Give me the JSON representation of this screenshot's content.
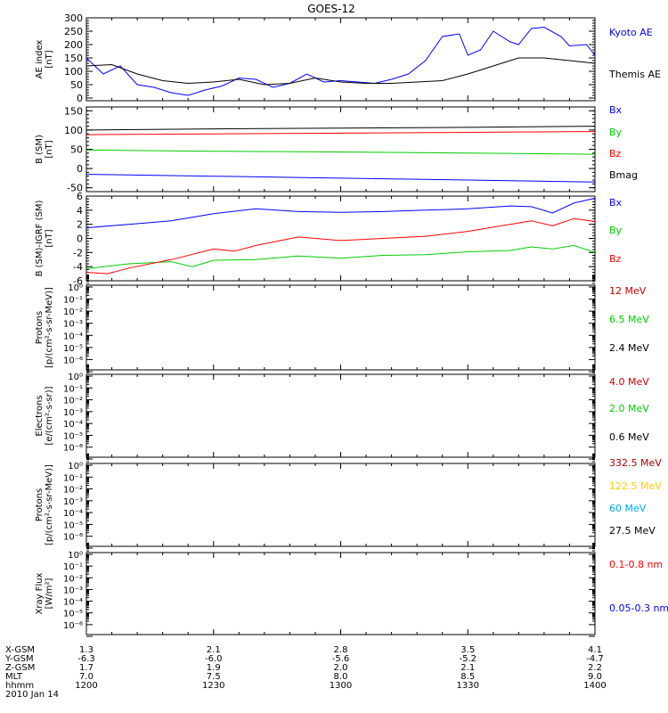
{
  "title": "GOES-12",
  "chart_data": [
    {
      "type": "line",
      "ylabel": "AE index\n[nT]",
      "ylim": [
        -10,
        300
      ],
      "yticks": [
        0,
        50,
        100,
        150,
        200,
        250,
        300
      ],
      "scale": "linear",
      "x": "time 12:00 to 14:00 UT",
      "series": [
        {
          "name": "Kyoto AE",
          "color": "#0000ff",
          "t": [
            0,
            4,
            8,
            12,
            16,
            20,
            24,
            28,
            32,
            36,
            40,
            44,
            48,
            52,
            56,
            60,
            64,
            68,
            72,
            76,
            80,
            84,
            88,
            90,
            93,
            96,
            100,
            102,
            105,
            108,
            112,
            114,
            118,
            120
          ],
          "values": [
            150,
            90,
            120,
            50,
            40,
            20,
            10,
            30,
            45,
            75,
            70,
            40,
            55,
            90,
            60,
            65,
            60,
            55,
            70,
            90,
            140,
            230,
            240,
            160,
            180,
            250,
            210,
            200,
            260,
            265,
            230,
            195,
            200,
            160
          ]
        },
        {
          "name": "Themis AE",
          "color": "#000000",
          "t": [
            0,
            6,
            12,
            18,
            24,
            30,
            36,
            42,
            48,
            54,
            60,
            66,
            72,
            78,
            84,
            90,
            96,
            102,
            108,
            114,
            120
          ],
          "values": [
            120,
            125,
            90,
            65,
            55,
            60,
            70,
            50,
            55,
            75,
            60,
            55,
            55,
            60,
            65,
            90,
            120,
            150,
            150,
            140,
            130
          ]
        }
      ]
    },
    {
      "type": "line",
      "ylabel": "B (SM)\n[nT]",
      "ylim": [
        -60,
        160
      ],
      "yticks": [
        -50,
        0,
        50,
        100,
        150
      ],
      "scale": "linear",
      "series": [
        {
          "name": "Bx",
          "color": "#0000ff",
          "t": [
            0,
            30,
            60,
            90,
            120
          ],
          "values": [
            -15,
            -20,
            -25,
            -30,
            -35
          ]
        },
        {
          "name": "By",
          "color": "#00cc00",
          "t": [
            0,
            30,
            60,
            90,
            120
          ],
          "values": [
            48,
            45,
            43,
            40,
            37
          ]
        },
        {
          "name": "Bz",
          "color": "#ff0000",
          "t": [
            0,
            30,
            60,
            90,
            120
          ],
          "values": [
            88,
            90,
            92,
            94,
            96
          ]
        },
        {
          "name": "Bmag",
          "color": "#000000",
          "t": [
            0,
            30,
            60,
            90,
            120
          ],
          "values": [
            100,
            103,
            105,
            107,
            110
          ]
        }
      ]
    },
    {
      "type": "line",
      "ylabel": "B (SM)-IGRF (SM)\n[nT]",
      "ylim": [
        -6,
        6
      ],
      "yticks": [
        -6,
        -4,
        -2,
        0,
        2,
        4,
        6
      ],
      "scale": "linear",
      "series": [
        {
          "name": "Bx",
          "color": "#0000ff",
          "t": [
            0,
            10,
            20,
            30,
            40,
            50,
            60,
            70,
            80,
            90,
            100,
            105,
            110,
            115,
            120
          ],
          "values": [
            1.5,
            2.0,
            2.5,
            3.5,
            4.2,
            3.8,
            3.7,
            3.8,
            4.0,
            4.2,
            4.6,
            4.5,
            3.6,
            5.0,
            5.7
          ]
        },
        {
          "name": "By",
          "color": "#00cc00",
          "t": [
            0,
            10,
            20,
            25,
            30,
            40,
            50,
            60,
            70,
            80,
            90,
            100,
            105,
            110,
            115,
            120
          ],
          "values": [
            -4.3,
            -3.6,
            -3.3,
            -4.0,
            -3.1,
            -3.0,
            -2.5,
            -2.8,
            -2.4,
            -2.3,
            -1.9,
            -1.7,
            -1.2,
            -1.5,
            -1.0,
            -2.0
          ]
        },
        {
          "name": "Bz",
          "color": "#ff0000",
          "t": [
            0,
            5,
            10,
            20,
            30,
            35,
            40,
            50,
            60,
            70,
            80,
            90,
            100,
            105,
            110,
            115,
            120
          ],
          "values": [
            -4.8,
            -5.0,
            -4.2,
            -3.0,
            -1.5,
            -1.8,
            -1.0,
            0.2,
            -0.3,
            0.0,
            0.3,
            1.0,
            2.0,
            2.5,
            1.8,
            2.8,
            2.4
          ]
        }
      ]
    },
    {
      "type": "line",
      "ylabel": "Protons\n[p/(cm²-s-sr-MeV)]",
      "ylim": [
        -7,
        0
      ],
      "scale": "log",
      "ticklabels": [
        "10⁰",
        "10⁻¹",
        "10⁻²",
        "10⁻³",
        "10⁻⁴",
        "10⁻⁵",
        "10⁻⁶"
      ],
      "series": [
        {
          "name": "12 MeV",
          "color": "#cc0000",
          "values": []
        },
        {
          "name": "6.5 MeV",
          "color": "#00cc00",
          "values": []
        },
        {
          "name": "2.4 MeV",
          "color": "#000000",
          "values": []
        }
      ]
    },
    {
      "type": "line",
      "ylabel": "Electrons\n[e/(cm²-s-sr)]",
      "ylim": [
        -7,
        0
      ],
      "scale": "log",
      "ticklabels": [
        "10⁰",
        "10⁻¹",
        "10⁻²",
        "10⁻³",
        "10⁻⁴",
        "10⁻⁵",
        "10⁻⁶"
      ],
      "series": [
        {
          "name": "4.0 MeV",
          "color": "#cc0000",
          "values": []
        },
        {
          "name": "2.0 MeV",
          "color": "#00cc00",
          "values": []
        },
        {
          "name": "0.6 MeV",
          "color": "#000000",
          "values": []
        }
      ]
    },
    {
      "type": "line",
      "ylabel": "Protons\n[p/(cm²-s-sr-MeV)]",
      "ylim": [
        -7,
        0
      ],
      "scale": "log",
      "ticklabels": [
        "10⁰",
        "10⁻¹",
        "10⁻²",
        "10⁻³",
        "10⁻⁴",
        "10⁻⁵",
        "10⁻⁶"
      ],
      "series": [
        {
          "name": "332.5 MeV",
          "color": "#aa0000",
          "values": []
        },
        {
          "name": "122.5 MeV",
          "color": "#ffcc00",
          "values": []
        },
        {
          "name": "60 MeV",
          "color": "#00aaee",
          "values": []
        },
        {
          "name": "27.5 MeV",
          "color": "#000000",
          "values": []
        }
      ]
    },
    {
      "type": "line",
      "ylabel": "Xray Flux\n[W/m²]",
      "ylim": [
        -7,
        0
      ],
      "scale": "log",
      "ticklabels": [
        "10⁰",
        "10⁻¹",
        "10⁻²",
        "10⁻³",
        "10⁻⁴",
        "10⁻⁵",
        "10⁻⁶"
      ],
      "series": [
        {
          "name": "0.1-0.8 nm",
          "color": "#ff0000",
          "values": []
        },
        {
          "name": "0.05-0.3 nm",
          "color": "#0000ff",
          "values": []
        }
      ]
    }
  ],
  "footer": {
    "row_labels": [
      "X-GSM",
      "Y-GSM",
      "Z-GSM",
      "MLT",
      "hhmm",
      "2010 Jan 14"
    ],
    "columns": [
      [
        "1.3",
        "-6.3",
        "1.7",
        "7.0",
        "1200"
      ],
      [
        "2.1",
        "-6.0",
        "1.9",
        "7.5",
        "1230"
      ],
      [
        "2.8",
        "-5.6",
        "2.0",
        "8.0",
        "1300"
      ],
      [
        "3.5",
        "-5.2",
        "2.1",
        "8.5",
        "1330"
      ],
      [
        "4.1",
        "-4.7",
        "2.2",
        "9.0",
        "1400"
      ]
    ]
  }
}
